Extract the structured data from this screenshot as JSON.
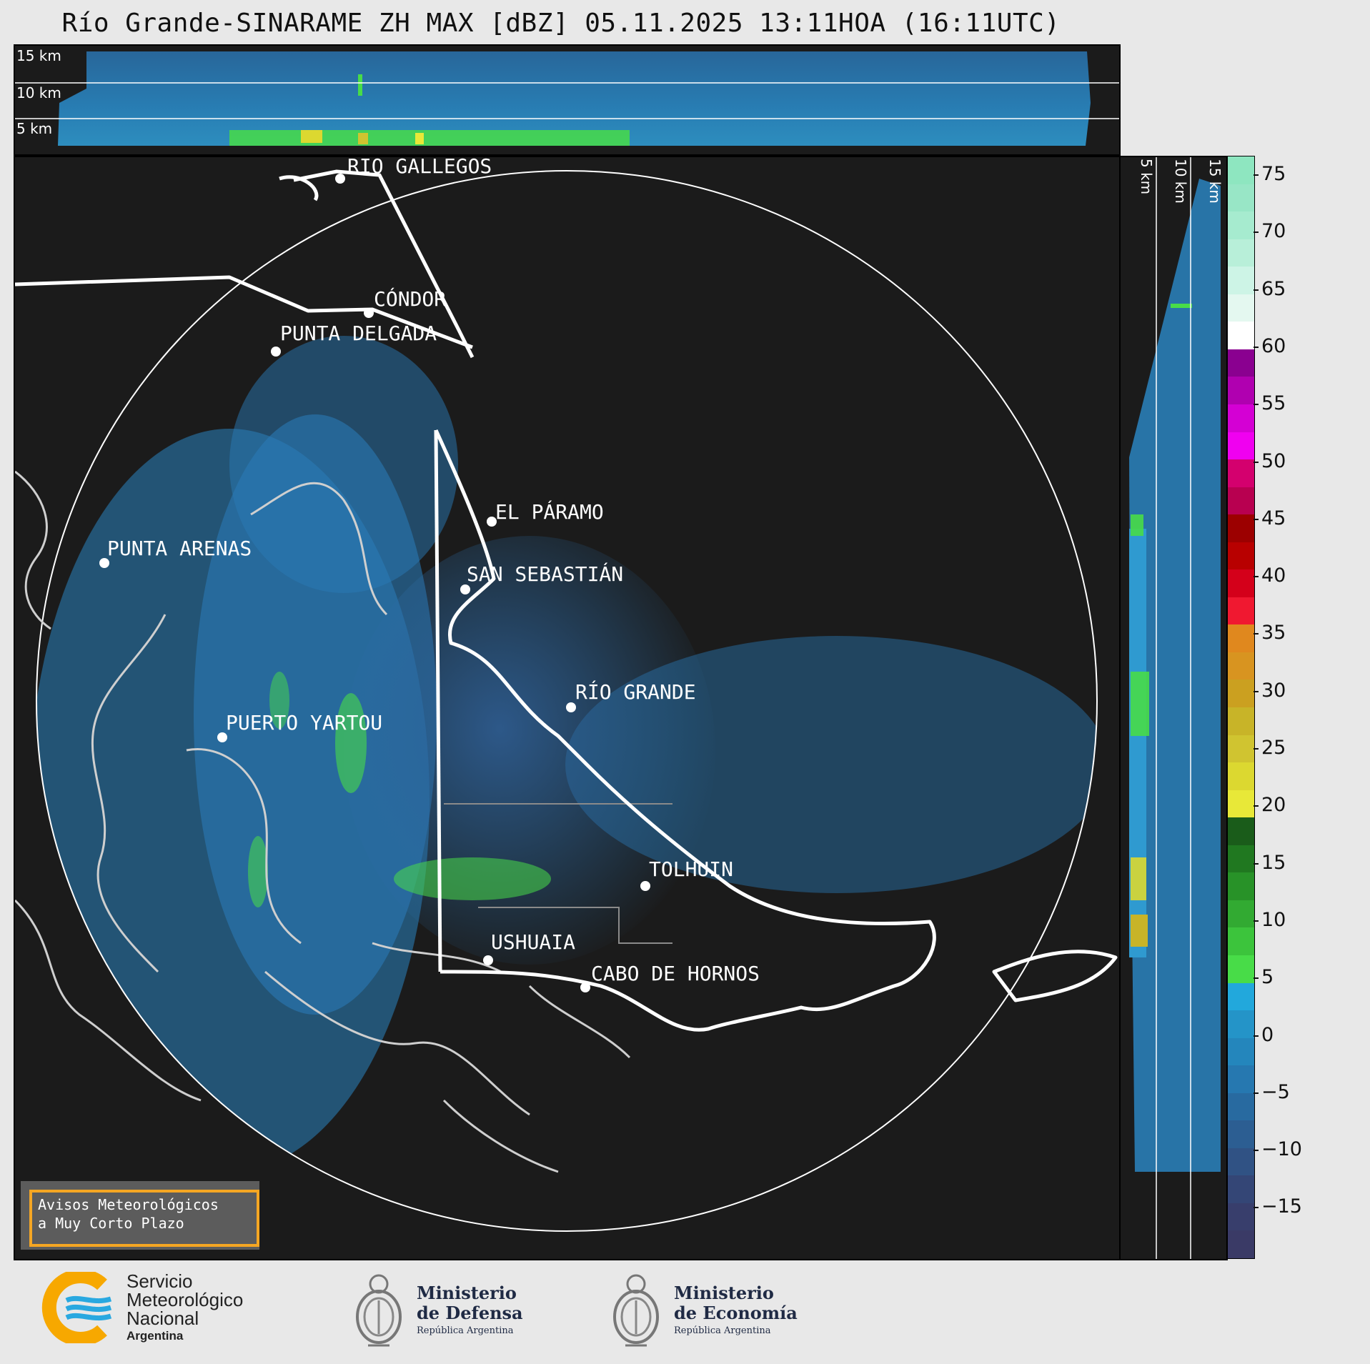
{
  "title": "Río Grande-SINARAME ZH MAX [dBZ] 05.11.2025 13:11HOA (16:11UTC)",
  "top_panel": {
    "altitude_labels": [
      "15 km",
      "10 km",
      "5 km"
    ]
  },
  "side_panel": {
    "altitude_labels": [
      "5 km",
      "10 km",
      "15 km"
    ]
  },
  "map": {
    "places": [
      {
        "name": "RÍO GALLEGOS"
      },
      {
        "name": "CÓNDOR"
      },
      {
        "name": "PUNTA DELGADA"
      },
      {
        "name": "EL PÁRAMO"
      },
      {
        "name": "SAN SEBASTIÁN"
      },
      {
        "name": "PUNTA ARENAS"
      },
      {
        "name": "RÍO GRANDE"
      },
      {
        "name": "PUERTO YARTOU"
      },
      {
        "name": "TOLHUIN"
      },
      {
        "name": "USHUAIA"
      },
      {
        "name": "CABO DE HORNOS"
      }
    ]
  },
  "colorbar": {
    "unit": "dBZ",
    "ticks": [
      "75",
      "70",
      "65",
      "60",
      "55",
      "50",
      "45",
      "40",
      "35",
      "30",
      "25",
      "20",
      "15",
      "10",
      "5",
      "0",
      "−5",
      "−10",
      "−15"
    ],
    "colors_top_to_bottom": [
      "#8ee6c0",
      "#98e6c6",
      "#a6ebcf",
      "#b8efd9",
      "#cdf4e6",
      "#e4f8f0",
      "#ffffff",
      "#8a0090",
      "#b000b0",
      "#d400d4",
      "#f000f0",
      "#d4006e",
      "#b80050",
      "#9c0000",
      "#b80000",
      "#d4001a",
      "#f01830",
      "#e0881e",
      "#d89420",
      "#cba020",
      "#c8b428",
      "#d0c430",
      "#dcd830",
      "#e8e838",
      "#1a5c1a",
      "#207820",
      "#289228",
      "#32aa32",
      "#3cc43c",
      "#48dc48",
      "#22a8dc",
      "#2494c8",
      "#2486bc",
      "#2678b0",
      "#286aa0",
      "#2c5e92",
      "#305284",
      "#344676",
      "#383e6c",
      "#3a3a66"
    ]
  },
  "alert_box": {
    "line1": "Avisos Meteorológicos",
    "line2": "a Muy Corto Plazo"
  },
  "logos": {
    "smn": {
      "line1": "Servicio",
      "line2": "Meteorológico",
      "line3": "Nacional",
      "line4": "Argentina",
      "colors": [
        "#f7a800",
        "#29a8e0"
      ]
    },
    "defensa": {
      "line1": "Ministerio",
      "line2": "de Defensa",
      "line3": "República Argentina"
    },
    "economia": {
      "line1": "Ministerio",
      "line2": "de Economía",
      "line3": "República Argentina"
    }
  }
}
